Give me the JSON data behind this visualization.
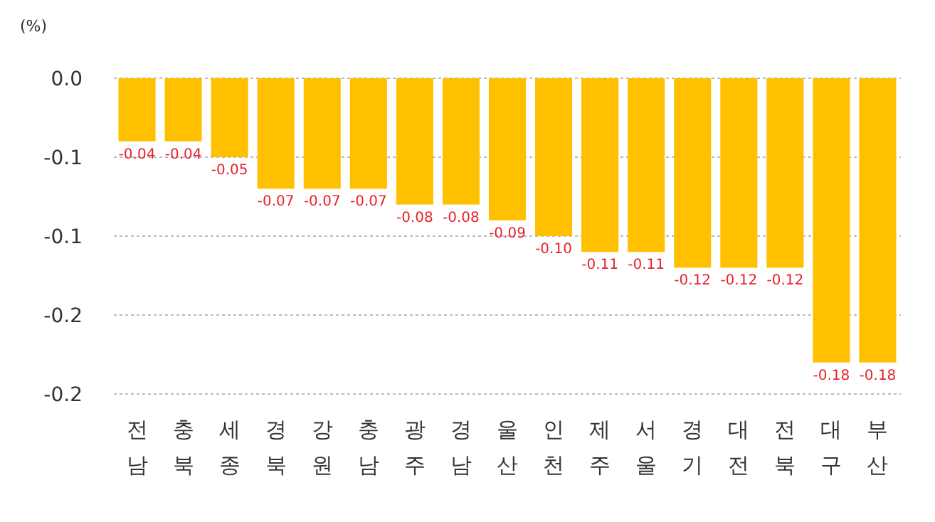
{
  "chart_data": {
    "type": "bar",
    "ylabel": "(%)",
    "categories": [
      "전남",
      "충북",
      "세종",
      "경북",
      "강원",
      "충남",
      "광주",
      "경남",
      "울산",
      "인천",
      "제주",
      "서울",
      "경기",
      "대전",
      "전북",
      "대구",
      "부산"
    ],
    "values": [
      -0.04,
      -0.04,
      -0.05,
      -0.07,
      -0.07,
      -0.07,
      -0.08,
      -0.08,
      -0.09,
      -0.1,
      -0.11,
      -0.11,
      -0.12,
      -0.12,
      -0.12,
      -0.18,
      -0.18
    ],
    "value_labels": [
      "-0.04",
      "-0.04",
      "-0.05",
      "-0.07",
      "-0.07",
      "-0.07",
      "-0.08",
      "-0.08",
      "-0.09",
      "-0.10",
      "-0.11",
      "-0.11",
      "-0.12",
      "-0.12",
      "-0.12",
      "-0.18",
      "-0.18"
    ],
    "color": "#ffc000",
    "ylim": [
      -0.2,
      0
    ],
    "yticks": [
      {
        "value": 0,
        "label": "0.0"
      },
      {
        "value": -0.05,
        "label": "-0.1"
      },
      {
        "value": -0.1,
        "label": "-0.1"
      },
      {
        "value": -0.15,
        "label": "-0.2"
      },
      {
        "value": -0.2,
        "label": "-0.2"
      }
    ],
    "grid": "y"
  }
}
